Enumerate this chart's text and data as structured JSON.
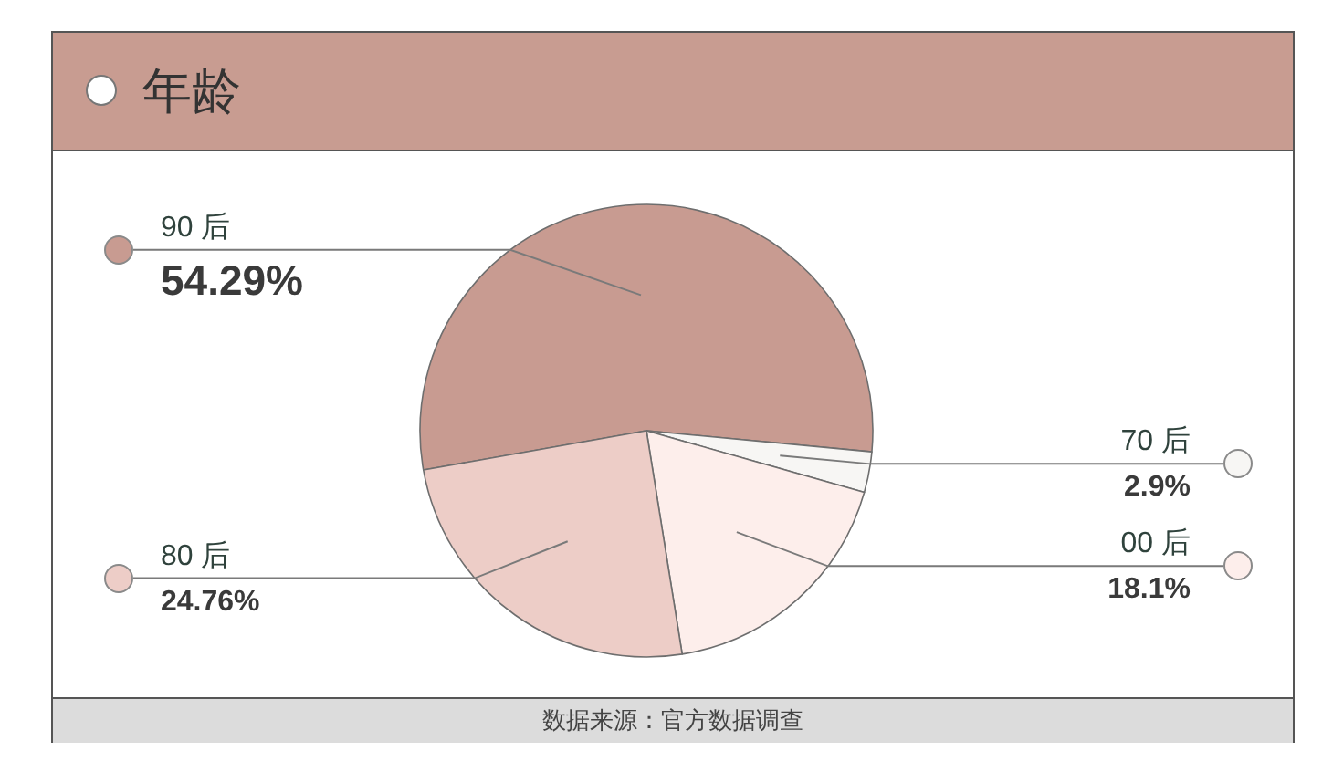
{
  "chart_data": {
    "type": "pie",
    "title": "年龄",
    "categories": [
      "90 后",
      "70 后",
      "00 后",
      "80 后"
    ],
    "values": [
      54.29,
      2.9,
      18.1,
      24.76
    ],
    "colors": [
      "#c89b91",
      "#f7f6f4",
      "#fdeeeb",
      "#edcdc7"
    ],
    "value_labels": [
      "54.29%",
      "2.9%",
      "18.1%",
      "24.76%"
    ],
    "annotations": [
      "数据来源：官方数据调查"
    ]
  }
}
